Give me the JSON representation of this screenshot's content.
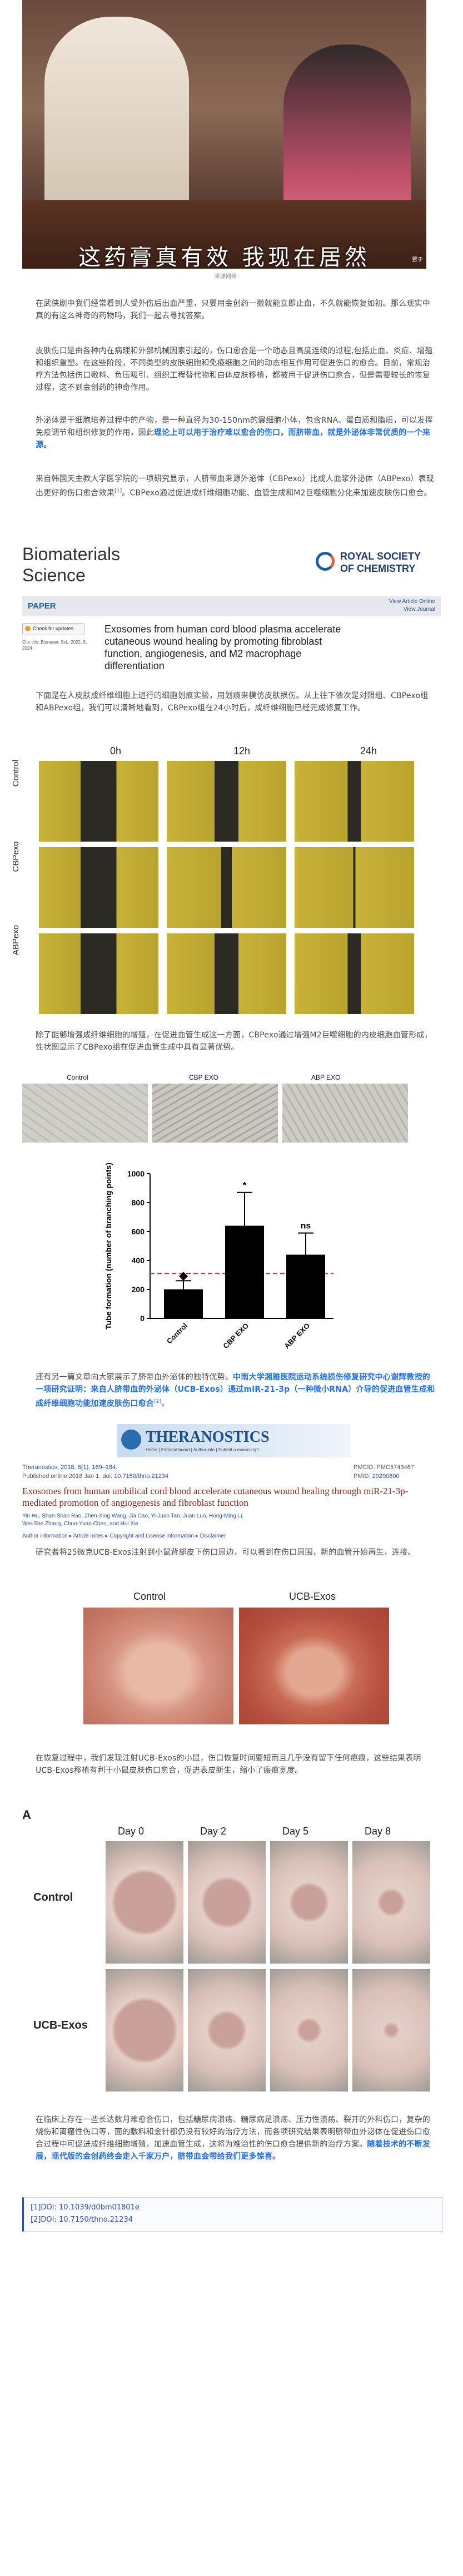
{
  "hero": {
    "subtitle": "这药膏真有效 我现在居然",
    "source": "来源网络",
    "corner": "置于"
  },
  "paragraphs": {
    "p1": "在武侠剧中我们经常看到人受外伤后出血严重，只要用金创药一撒就能立即止血，不久就能恢复如初。那么现实中真的有这么神奇的药物吗，我们一起去寻找答案。",
    "p2": "皮肤伤口是由各种内在病理和外部机械因素引起的，伤口愈合是一个动态且高度连续的过程,包括止血、炎症、增殖和组织重塑。在这些阶段，不同类型的皮肤细胞和免疫细胞之间的动态相互作用可促进伤口的愈合。目前，常规治疗方法包括伤口敷料、负压吸引、组织工程替代物和自体皮肤移植，都被用于促进伤口愈合，但是需要较长的恢复过程，这不到金创药的神奇作用。",
    "p3a": "外泌体是干细胞培养过程中的产物，是一种直径为30-150nm的囊细胞小体，包含RNA、蛋白质和脂质，可以发挥免疫调节和组织修复的作用，因此",
    "p3b": "理论上可以用于治疗难以愈合的伤口，而脐带血，就是外泌体非常优质的一个来源。",
    "p4a": "来自韩国天主教大学医学院的一项研究显示，人脐带血来源外泌体（CBPexo）比成人血浆外泌体（ABPexo）表现出更好的伤口愈合效果",
    "p4sup": "[1]",
    "p4b": "。CBPexo通过促进成纤维细胞功能、血管生成和M2巨噬细胞分化来加速皮肤伤口愈合。",
    "p5": "下面是在人皮肤成纤维细胞上进行的细胞划痕实验，用划痕来模仿皮肤损伤。从上往下依次是对照组、CBPexo组和ABPexo组，我们可以清晰地看到，CBPexo组在24小时后，成纤维细胞已经完成修复工作。",
    "p6": "除了能够增强成纤维细胞的增殖，在促进血管生成这一方面，CBPexo通过增强M2巨噬细胞的内皮细胞血管形成，性状图显示了CBPexo组在促进血管生成中具有显著优势。",
    "p7a": "还有另一篇文章向大家展示了脐带血外泌体的独特优势。",
    "p7b": "中南大学湘雅医院运动系统损伤修复研究中心谢辉教授的一项研究证明：来自人脐带血的外泌体（UCB-Exos）通过miR-21-3p（一种微小RNA）介导的促进血管生成和成纤维细胞功能加速皮肤伤口愈合",
    "p7sup": "[2]",
    "p7c": "。",
    "p8": "研究者将25微克UCB-Exos注射到小鼠背部皮下伤口周边，可以看到在伤口周围，新的血管开始再生，连接。",
    "p9": "在恢复过程中，我们发现注射UCB-Exos的小鼠，伤口恢复时间要短而且几乎没有留下任何疤痕，这些结果表明UCB-Exos移植有利于小鼠皮肤伤口愈合，促进表皮新生，缩小了瘢痕宽度。",
    "p10a": "在临床上存在一些长达数月难愈合伤口，包括糖尿病溃疡、糖尿病足溃疡、压力性溃疡、裂开的外科伤口，复杂的烧伤和离瘢性伤口等，面的敷料和金针都仍没有较好的治疗方法，而各项研究结果表明脐带血外泌体在促进伤口愈合过程中可促进成纤维细胞增殖，加速血管生成，这将为难治性的伤口愈合提供新的治疗方案。",
    "p10b": "随着技术的不断发展，现代版的金创药终会走入千家万户，脐带血会带给我们更多惊喜。"
  },
  "paper1": {
    "journal_line1": "Biomaterials",
    "journal_line2": "Science",
    "publisher_line1": "ROYAL SOCIETY",
    "publisher_line2": "OF CHEMISTRY",
    "type": "PAPER",
    "view_article_1": "View Article Online",
    "view_article_2": "View Journal",
    "check_updates": "Check for updates",
    "cite_line1": "Cite this: Biomater. Sci., 2022, 9,",
    "cite_line2": "2024",
    "title": "Exosomes from human cord blood plasma accelerate cutaneous wound healing by promoting fibroblast function, angiogenesis, and M2 macrophage differentiation"
  },
  "scratch": {
    "cols": [
      "0h",
      "12h",
      "24h"
    ],
    "rows": [
      "Control",
      "CBPexo",
      "ABPexo"
    ]
  },
  "tube_images": {
    "labels": [
      "Control",
      "CBP EXO",
      "ABP EXO"
    ]
  },
  "chart_data": {
    "type": "bar",
    "categories": [
      "Control",
      "CBP EXO",
      "ABP EXO"
    ],
    "values": [
      200,
      640,
      440
    ],
    "errors": [
      60,
      230,
      150
    ],
    "ylabel": "Tube formation (number of branching points)",
    "ylim": [
      0,
      1000
    ],
    "yticks": [
      0,
      200,
      400,
      600,
      800,
      1000
    ],
    "significance": [
      "",
      "*",
      "ns"
    ],
    "reference_line": 310,
    "colors": {
      "bar": "#000000",
      "reference": "#e03030"
    }
  },
  "paper2": {
    "journal": "THERANOSTICS",
    "journal_sub": "Home | Editorial board | Author info | Submit a manuscript",
    "citation": "Theranostics. 2018; 8(1): 169–184.",
    "published": "Published online 2018 Jan 1. doi:",
    "doi": "10.7150/thno.21234",
    "pmcid": "PMCID: PMC5743467",
    "pmid_label": "PMID:",
    "pmid": "29290800",
    "title": "Exosomes from human umbilical cord blood accelerate cutaneous wound healing through miR-21-3p-mediated promotion of angiogenesis and fibroblast function",
    "authors_1": "Yin Hu, Shan-Shan Rao, Zhen-Xing Wang, Jia Cao, Yi-Juan Tan, Juan Luo, Hong-Ming Li,",
    "authors_2": "Wei-She Zhang, Chun-Yuan Chen, and Hui Xie",
    "links": "Author information ▸ Article notes ▸ Copyright and License information ▸ Disclaimer"
  },
  "mouse_images": {
    "labels": [
      "Control",
      "UCB-Exos"
    ]
  },
  "wound_grid": {
    "panel": "A",
    "cols": [
      "Day 0",
      "Day 2",
      "Day 5",
      "Day 8"
    ],
    "rows": [
      "Control",
      "UCB-Exos"
    ]
  },
  "references": {
    "r1": "[1]DOI: 10.1039/d0bm01801e",
    "r2": "[2]DOI: 10.7150/thno.21234"
  }
}
